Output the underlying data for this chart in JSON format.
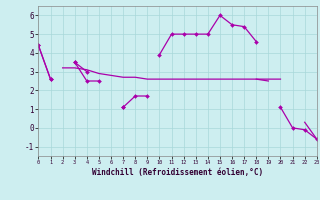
{
  "xlabel": "Windchill (Refroidissement éolien,°C)",
  "bg_color": "#cdeef0",
  "grid_color": "#a8d8da",
  "line_color": "#aa00aa",
  "x_hours": [
    0,
    1,
    2,
    3,
    4,
    5,
    6,
    7,
    8,
    9,
    10,
    11,
    12,
    13,
    14,
    15,
    16,
    17,
    18,
    19,
    20,
    21,
    22,
    23
  ],
  "series_main": [
    4.4,
    2.6,
    null,
    3.5,
    2.5,
    2.5,
    null,
    1.1,
    null,
    null,
    3.9,
    5.0,
    5.0,
    5.0,
    5.0,
    6.0,
    5.5,
    5.4,
    4.6,
    null,
    1.1,
    0.0,
    -0.1,
    -0.6
  ],
  "series_smooth": [
    4.4,
    null,
    3.2,
    3.2,
    3.1,
    2.9,
    2.8,
    2.7,
    2.7,
    2.6,
    2.6,
    2.6,
    2.6,
    2.6,
    2.6,
    2.6,
    2.6,
    2.6,
    2.6,
    2.6,
    2.6,
    null,
    null,
    null
  ],
  "series_diag": [
    4.4,
    null,
    null,
    null,
    null,
    null,
    null,
    null,
    null,
    null,
    null,
    null,
    null,
    null,
    null,
    null,
    null,
    null,
    2.6,
    2.5,
    null,
    null,
    0.3,
    -0.6
  ],
  "series_short": [
    4.4,
    2.6,
    null,
    3.5,
    3.0,
    null,
    null,
    1.1,
    1.7,
    1.7,
    null,
    null,
    null,
    null,
    null,
    null,
    null,
    null,
    null,
    null,
    null,
    null,
    null,
    null
  ],
  "xlim": [
    0,
    23
  ],
  "ylim": [
    -1.5,
    6.5
  ],
  "yticks": [
    -1,
    0,
    1,
    2,
    3,
    4,
    5,
    6
  ]
}
